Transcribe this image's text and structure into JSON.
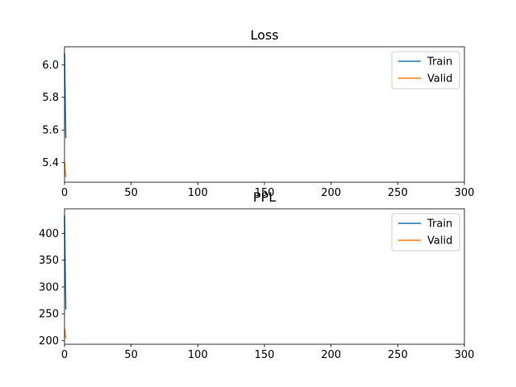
{
  "chart_data": [
    {
      "type": "line",
      "title": "Loss",
      "xlabel": "",
      "ylabel": "",
      "xlim": [
        0,
        300
      ],
      "ylim": [
        5.28,
        6.11
      ],
      "xticks": [
        0,
        50,
        100,
        150,
        200,
        250,
        300
      ],
      "yticks": [
        5.4,
        5.6,
        5.8,
        6.0
      ],
      "ytick_labels": [
        "5.4",
        "5.6",
        "5.8",
        "6.0"
      ],
      "grid": false,
      "legend_position": "top-right",
      "series": [
        {
          "name": "Train",
          "color": "#1f77b4",
          "x": [
            0,
            1
          ],
          "y": [
            6.07,
            5.55
          ]
        },
        {
          "name": "Valid",
          "color": "#ff7f0e",
          "x": [
            0,
            1
          ],
          "y": [
            5.4,
            5.31
          ]
        }
      ]
    },
    {
      "type": "line",
      "title": "PPL",
      "xlabel": "",
      "ylabel": "",
      "xlim": [
        0,
        300
      ],
      "ylim": [
        193,
        446
      ],
      "xticks": [
        0,
        50,
        100,
        150,
        200,
        250,
        300
      ],
      "yticks": [
        200,
        250,
        300,
        350,
        400
      ],
      "ytick_labels": [
        "200",
        "250",
        "300",
        "350",
        "400"
      ],
      "grid": false,
      "legend_position": "top-right",
      "series": [
        {
          "name": "Train",
          "color": "#1f77b4",
          "x": [
            0,
            1
          ],
          "y": [
            433,
            258
          ]
        },
        {
          "name": "Valid",
          "color": "#ff7f0e",
          "x": [
            0,
            1
          ],
          "y": [
            222,
            204
          ]
        }
      ]
    }
  ]
}
